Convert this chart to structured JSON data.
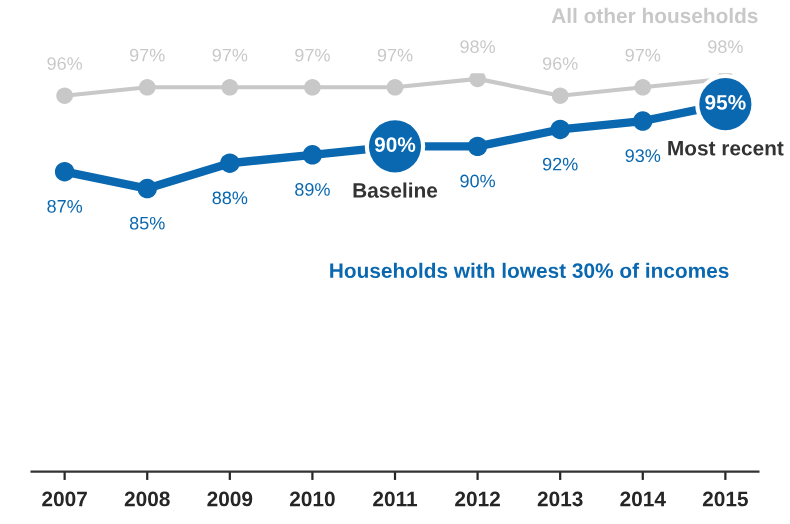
{
  "chart_data": {
    "type": "line",
    "categories": [
      "2007",
      "2008",
      "2009",
      "2010",
      "2011",
      "2012",
      "2013",
      "2014",
      "2015"
    ],
    "tick_labels": "x",
    "grid": false,
    "legend": false,
    "marker": "circle",
    "line_style": "solid",
    "series": [
      {
        "name": "All other households",
        "color": "#c8c8c8",
        "values": [
          96,
          97,
          97,
          97,
          97,
          98,
          96,
          97,
          98
        ],
        "value_labels": [
          "96%",
          "97%",
          "97%",
          "97%",
          "97%",
          "98%",
          "96%",
          "97%",
          "98%"
        ]
      },
      {
        "name": "Households with lowest 30% of incomes",
        "color": "#0a68b0",
        "values": [
          87,
          85,
          88,
          89,
          90,
          90,
          92,
          93,
          95
        ],
        "value_labels": [
          "87%",
          "85%",
          "88%",
          "89%",
          null,
          "90%",
          "92%",
          "93%",
          null
        ]
      }
    ],
    "annotations": [
      {
        "text": "90%",
        "x": "2011",
        "y": 90
      },
      {
        "text": "95%",
        "x": "2015",
        "y": 95
      },
      {
        "text": "Baseline",
        "x": "2011",
        "y": 90
      },
      {
        "text": "Most recent",
        "x": "2015",
        "y": 95
      }
    ]
  }
}
